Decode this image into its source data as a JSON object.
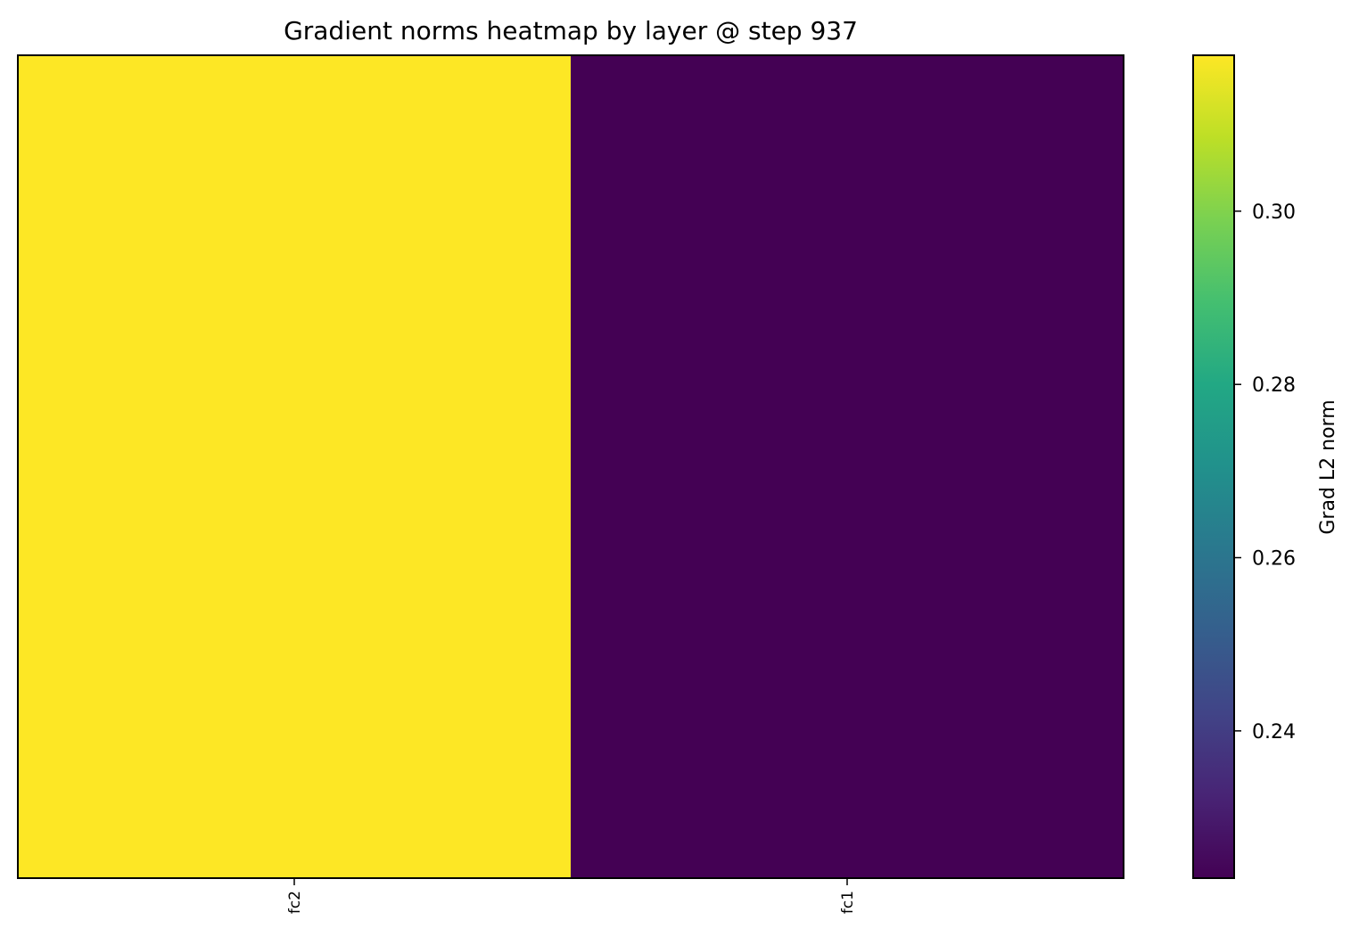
{
  "chart_data": {
    "type": "heatmap",
    "title": "Gradient norms heatmap by layer @ step 937",
    "x_categories": [
      "fc2",
      "fc1"
    ],
    "values": [
      0.318,
      0.223
    ],
    "colorbar": {
      "label": "Grad L2 norm",
      "colormap": "viridis",
      "range": [
        0.223,
        0.318
      ],
      "ticks": [
        "0.24",
        "0.26",
        "0.28",
        "0.30"
      ],
      "tick_values": [
        0.24,
        0.26,
        0.28,
        0.3
      ]
    },
    "grid": false
  }
}
